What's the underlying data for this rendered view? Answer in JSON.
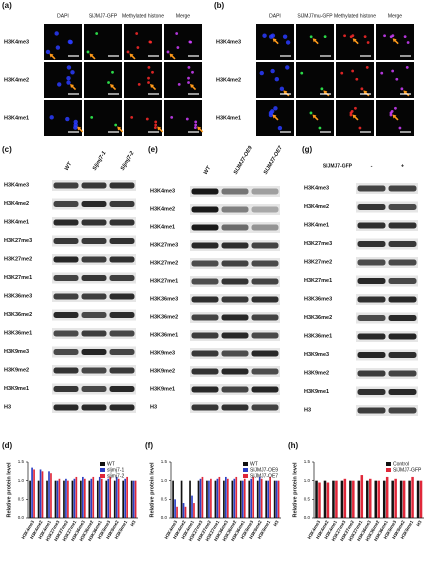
{
  "panels": {
    "a": {
      "label": "(a)",
      "columns": [
        "DAPI",
        "SlJMJ7-GFP",
        "Methylated histone",
        "Merge"
      ],
      "rows": [
        "H3K4me3",
        "H3K4me2",
        "H3K4me1"
      ]
    },
    "b": {
      "label": "(b)",
      "columns": [
        "DAPI",
        "SlJMJ7mu-GFP",
        "Methylated histone",
        "Merge"
      ],
      "rows": [
        "H3K4me3",
        "H3K4me2",
        "H3K4me1"
      ]
    },
    "c": {
      "label": "(c)",
      "lanes": [
        "WT",
        "Sljmj7-1",
        "Sljmj7-2"
      ],
      "rows": [
        "H3K4me3",
        "H3K4me2",
        "H3K4me1",
        "H3K27me3",
        "H3K27me2",
        "H3K27me1",
        "H3K36me3",
        "H3K36me2",
        "H3K36me1",
        "H3K9me3",
        "H3K9me2",
        "H3K9me1",
        "H3"
      ]
    },
    "e": {
      "label": "(e)",
      "lanes": [
        "WT",
        "SlJMJ7-OE9",
        "SlJMJ7-OE7"
      ],
      "rows": [
        "H3K4me3",
        "H3K4me2",
        "H3K4me1",
        "H3K27me3",
        "H3K27me2",
        "H3K27me1",
        "H3K36me3",
        "H3K36me2",
        "H3K36me1",
        "H3K9me3",
        "H3K9me2",
        "H3K9me1",
        "H3"
      ]
    },
    "g": {
      "label": "(g)",
      "construct": "SlJMJ7-GFP",
      "lanes": [
        "-",
        "+"
      ],
      "rows": [
        "H3K4me3",
        "H3K4me2",
        "H3K4me1",
        "H3K27me3",
        "H3K27me2",
        "H3K27me1",
        "H3K36me3",
        "H3K36me2",
        "H3K36me1",
        "H3K9me3",
        "H3K9me2",
        "H3K9me1",
        "H3"
      ]
    }
  },
  "chart_data": [
    {
      "type": "bar",
      "label": "(d)",
      "y_label": "Relative protein level",
      "categories": [
        "H3K4me3",
        "H3K4me2",
        "H3K4me1",
        "H3K27me3",
        "H3K27me2",
        "H3K27me1",
        "H3K36me3",
        "H3K36me2",
        "H3K36me1",
        "H3K9me3",
        "H3K9me2",
        "H3K9me1",
        "H3"
      ],
      "series": [
        {
          "name": "WT",
          "color": "#111111",
          "values": [
            1,
            1,
            1,
            1,
            1,
            1,
            1,
            1,
            1,
            1,
            1,
            1,
            1
          ]
        },
        {
          "name": "sljmj7-1",
          "color": "#2b3fc4",
          "values": [
            1.35,
            1.3,
            1.25,
            1.0,
            1.05,
            1.05,
            1.1,
            1.05,
            1.1,
            1.05,
            1.1,
            1.05,
            1.0
          ]
        },
        {
          "name": "sljmj7-2",
          "color": "#e0283a",
          "values": [
            1.3,
            1.25,
            1.2,
            1.05,
            1.0,
            1.1,
            1.05,
            1.1,
            1.05,
            1.1,
            1.05,
            1.1,
            1.0
          ]
        }
      ],
      "ylim": [
        0,
        1.5
      ],
      "yticks": [
        {
          "value": 0,
          "label": "0.0"
        },
        0.5,
        {
          "value": 1,
          "label": "1.0"
        },
        1.5
      ]
    },
    {
      "type": "bar",
      "label": "(f)",
      "y_label": "Relative protein level",
      "categories": [
        "H3K4me3",
        "H3K4me2",
        "H3K4me1",
        "H3K27me3",
        "H3K27me2",
        "H3K27me1",
        "H3K36me3",
        "H3K36me2",
        "H3K36me1",
        "H3K9me3",
        "H3K9me2",
        "H3K9me1",
        "H3"
      ],
      "series": [
        {
          "name": "WT",
          "color": "#111111",
          "values": [
            1,
            1,
            1,
            1,
            1,
            1,
            1,
            1,
            1,
            1,
            1,
            1,
            1
          ]
        },
        {
          "name": "SlJMJ7-OE9",
          "color": "#2b3fc4",
          "values": [
            0.5,
            0.4,
            0.6,
            1.05,
            1.0,
            1.05,
            1.1,
            1.05,
            1.0,
            1.05,
            1.1,
            1.0,
            1.0
          ]
        },
        {
          "name": "SlJMJ7-OE7",
          "color": "#e0283a",
          "values": [
            0.3,
            0.3,
            0.4,
            1.1,
            1.05,
            1.1,
            1.05,
            1.1,
            1.05,
            1.1,
            1.05,
            1.1,
            1.0
          ]
        }
      ],
      "ylim": [
        0,
        1.5
      ],
      "yticks": [
        {
          "value": 0,
          "label": "0.0"
        },
        0.5,
        {
          "value": 1,
          "label": "1.0"
        },
        1.5
      ]
    },
    {
      "type": "bar",
      "label": "(h)",
      "y_label": "Relative protein level",
      "categories": [
        "H3K4me3",
        "H3K4me2",
        "H3K4me1",
        "H3K27me3",
        "H3K27me2",
        "H3K27me1",
        "H3K36me3",
        "H3K36me2",
        "H3K36me1",
        "H3K9me3",
        "H3K9me2",
        "H3K9me1",
        "H3"
      ],
      "series": [
        {
          "name": "Control",
          "color": "#111111",
          "values": [
            1,
            1,
            1,
            1,
            1,
            1,
            1,
            1,
            1,
            1,
            1,
            1,
            1
          ]
        },
        {
          "name": "SlJMJ7-GFP",
          "color": "#e0283a",
          "values": [
            0.95,
            0.95,
            1.0,
            1.05,
            1.0,
            1.15,
            1.05,
            1.0,
            1.1,
            1.05,
            1.0,
            1.1,
            1.0
          ]
        }
      ],
      "ylim": [
        0,
        1.5
      ],
      "yticks": [
        {
          "value": 0,
          "label": "0.0"
        },
        0.5,
        {
          "value": 1,
          "label": "1.0"
        },
        1.5
      ]
    }
  ]
}
